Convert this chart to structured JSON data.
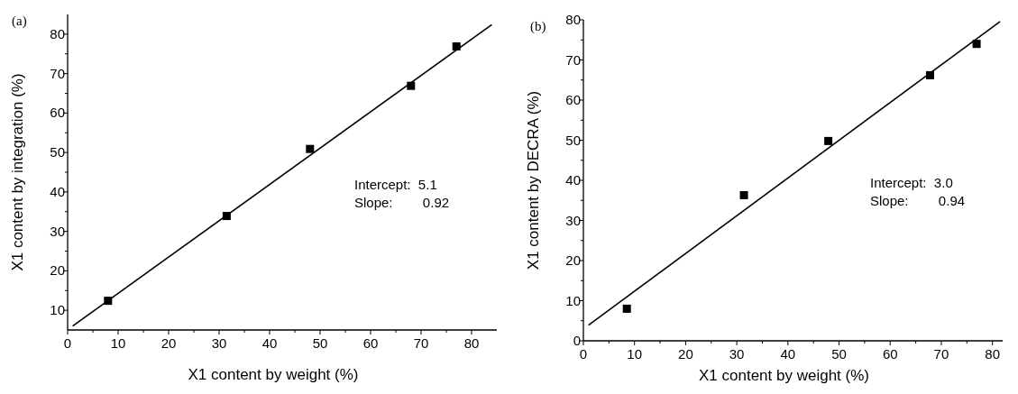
{
  "chart_data": [
    {
      "type": "scatter",
      "title": "(a)",
      "xlabel": "X1 content by weight (%)",
      "ylabel": "X1 content by integration (%)",
      "grid": false,
      "xlim": [
        0,
        85
      ],
      "ylim": [
        5,
        85
      ],
      "xticks": [
        0,
        {
          "value": 5,
          "label": null
        },
        10,
        {
          "value": 15,
          "label": null
        },
        20,
        {
          "value": 25,
          "label": null
        },
        30,
        {
          "value": 35,
          "label": null
        },
        40,
        {
          "value": 45,
          "label": null
        },
        50,
        {
          "value": 55,
          "label": null
        },
        60,
        {
          "value": 65,
          "label": null
        },
        70,
        {
          "value": 75,
          "label": null
        },
        80
      ],
      "yticks": [
        10,
        {
          "value": 15,
          "label": null
        },
        20,
        {
          "value": 25,
          "label": null
        },
        30,
        {
          "value": 35,
          "label": null
        },
        40,
        {
          "value": 45,
          "label": null
        },
        50,
        {
          "value": 55,
          "label": null
        },
        60,
        {
          "value": 65,
          "label": null
        },
        70,
        {
          "value": 75,
          "label": null
        },
        80
      ],
      "annotations": [
        "Intercept:  5.1",
        "Slope:        0.92"
      ],
      "series": [
        {
          "color": "#000000",
          "marker": "square",
          "x": [
            8,
            31.5,
            48,
            68,
            77
          ],
          "values": [
            12.4,
            33.9,
            50.9,
            66.9,
            76.9
          ]
        },
        {
          "type": "line",
          "color": "#000000",
          "marker": "none",
          "x": [
            1,
            84
          ],
          "values": [
            6.0,
            82.4
          ]
        }
      ]
    },
    {
      "type": "scatter",
      "title": "(b)",
      "xlabel": "X1 content by weight (%)",
      "ylabel": "X1 content by DECRA (%)",
      "grid": false,
      "xlim": [
        0,
        82
      ],
      "ylim": [
        0,
        80
      ],
      "xticks": [
        0,
        {
          "value": 5,
          "label": null
        },
        10,
        {
          "value": 15,
          "label": null
        },
        20,
        {
          "value": 25,
          "label": null
        },
        30,
        {
          "value": 35,
          "label": null
        },
        40,
        {
          "value": 45,
          "label": null
        },
        50,
        {
          "value": 55,
          "label": null
        },
        60,
        {
          "value": 65,
          "label": null
        },
        70,
        {
          "value": 75,
          "label": null
        },
        80
      ],
      "yticks": [
        0,
        {
          "value": 5,
          "label": null
        },
        10,
        {
          "value": 15,
          "label": null
        },
        20,
        {
          "value": 25,
          "label": null
        },
        30,
        {
          "value": 35,
          "label": null
        },
        40,
        {
          "value": 45,
          "label": null
        },
        50,
        {
          "value": 55,
          "label": null
        },
        60,
        {
          "value": 65,
          "label": null
        },
        70,
        {
          "value": 75,
          "label": null
        },
        80
      ],
      "annotations": [
        "Intercept:  3.0",
        "Slope:        0.94"
      ],
      "series": [
        {
          "color": "#000000",
          "marker": "square",
          "x": [
            8.5,
            31.4,
            47.9,
            67.8,
            76.9
          ],
          "values": [
            8.0,
            36.3,
            49.8,
            66.2,
            74.0
          ]
        },
        {
          "type": "line",
          "color": "#000000",
          "marker": "none",
          "x": [
            1,
            81.5
          ],
          "values": [
            3.9,
            79.6
          ]
        }
      ]
    }
  ]
}
